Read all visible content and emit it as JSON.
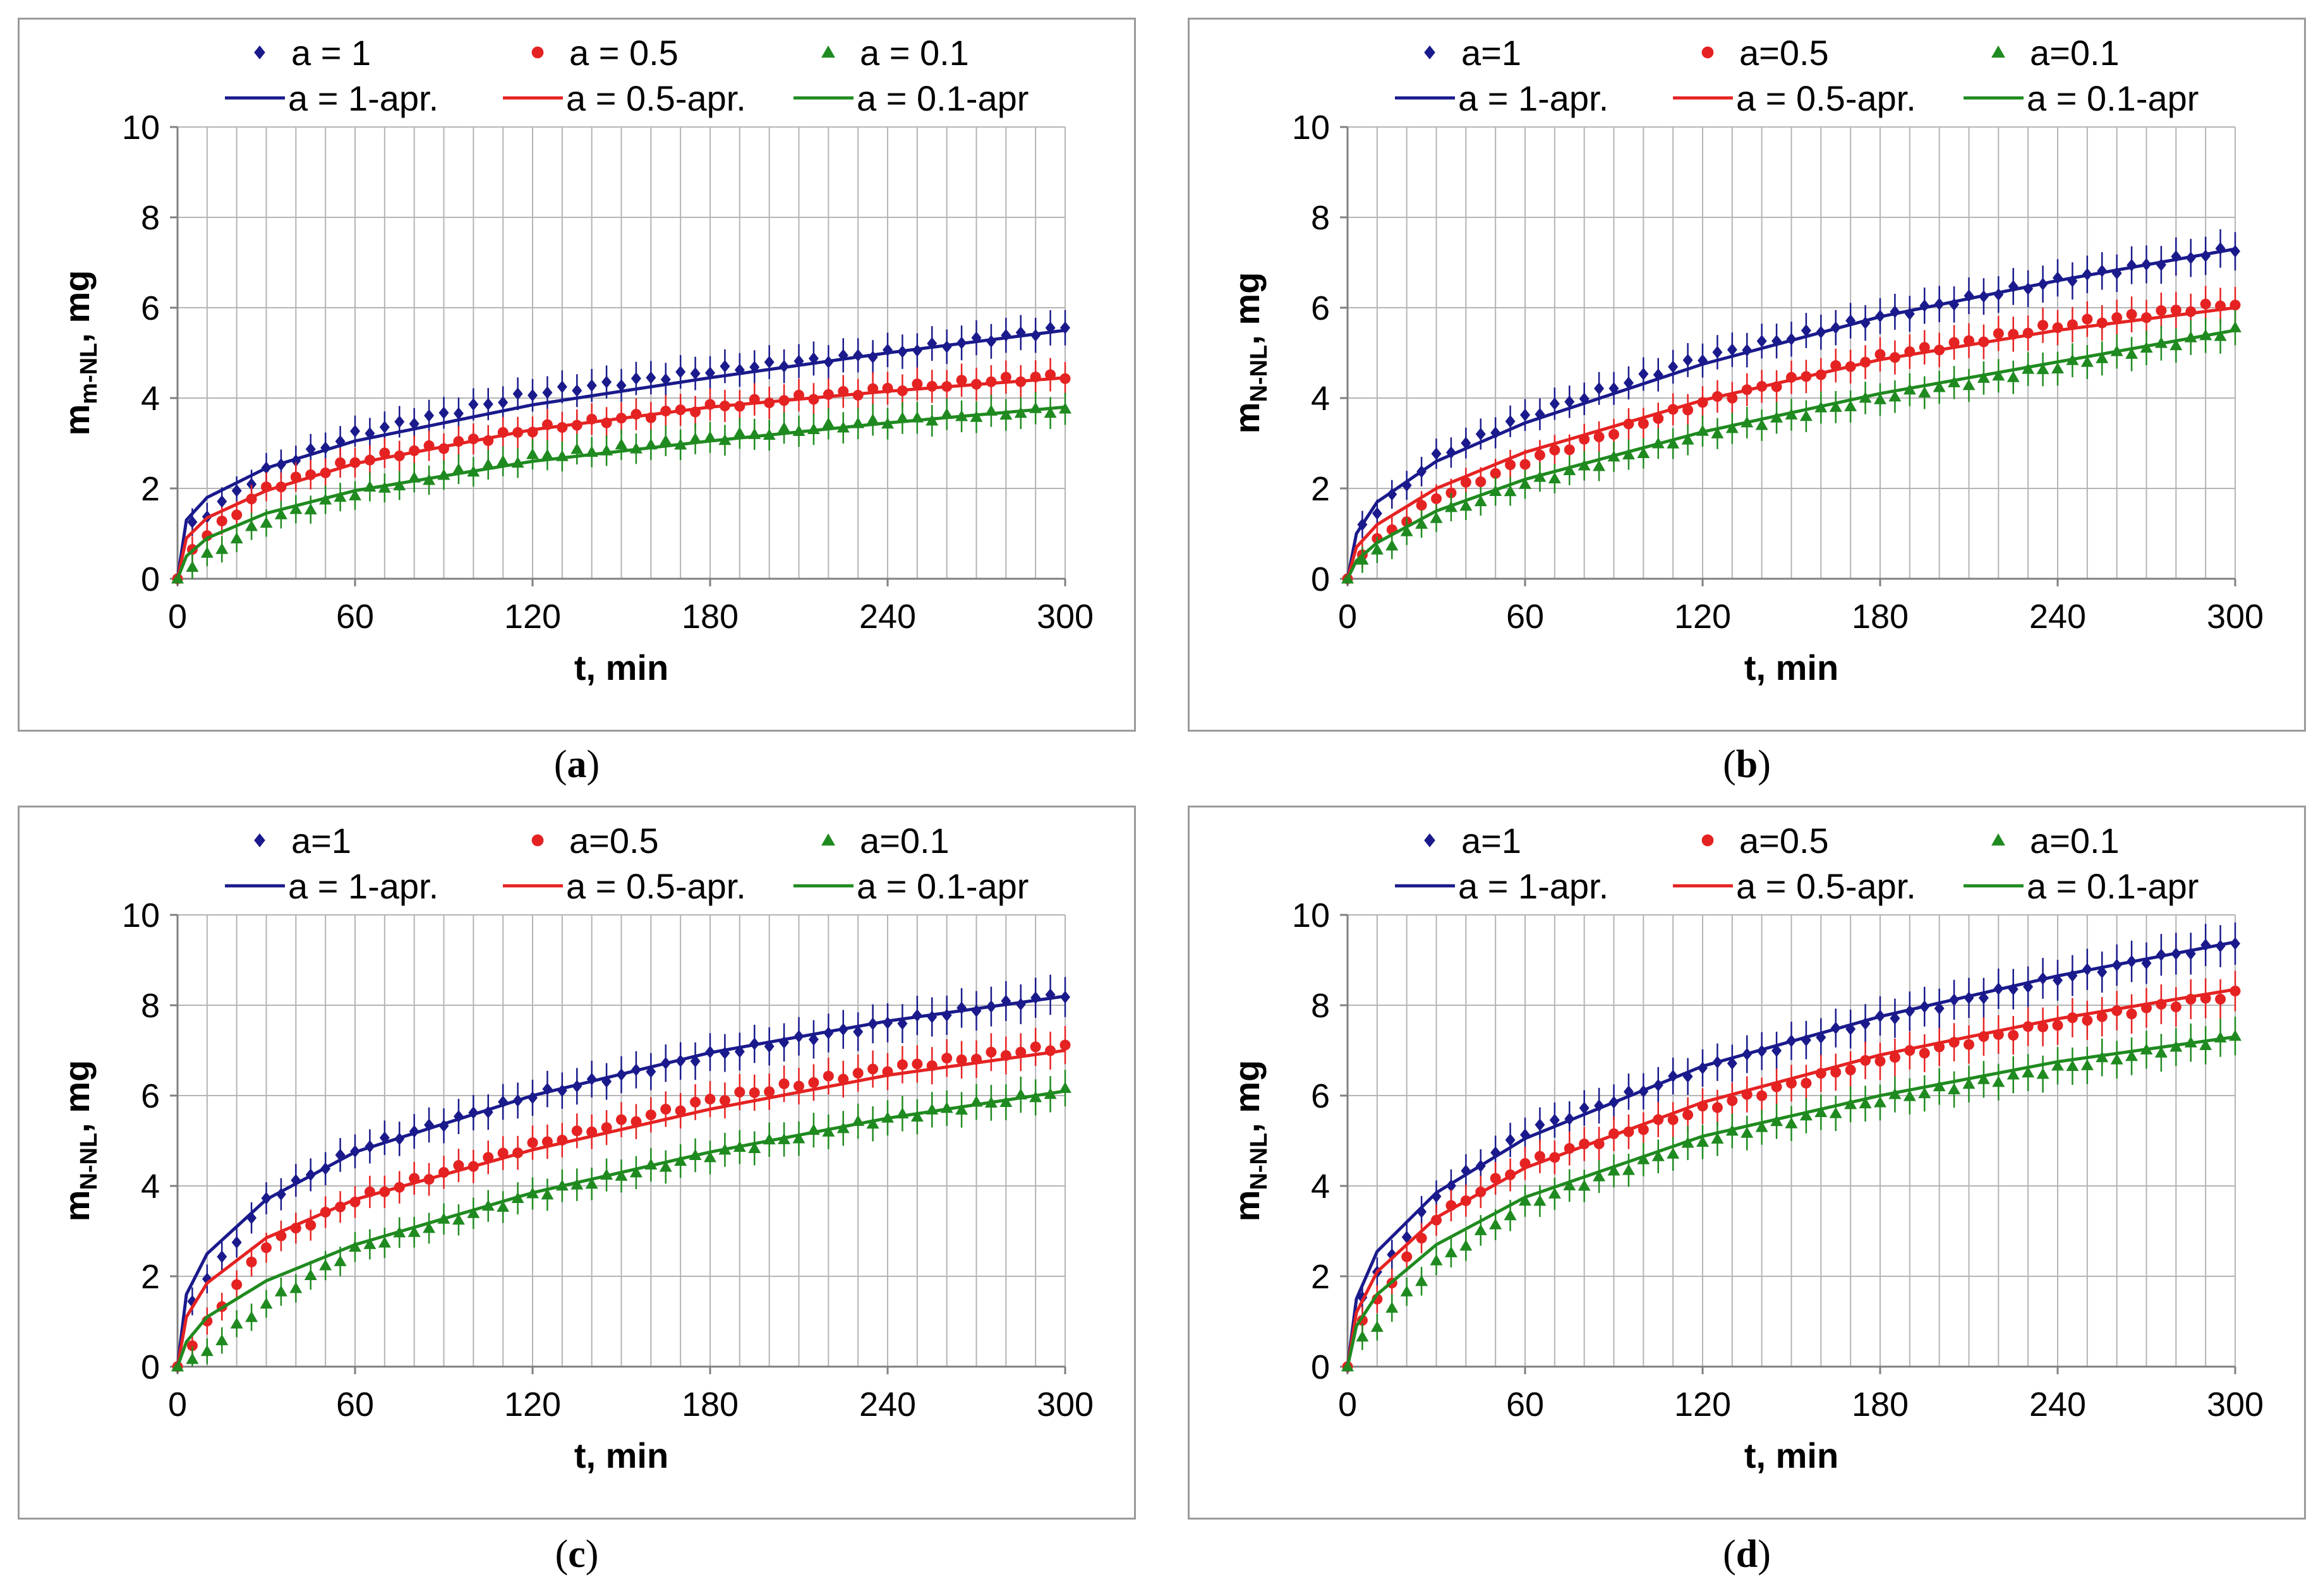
{
  "colors": {
    "blue": "#1a1a8c",
    "red": "#e52222",
    "green": "#1f8a1f",
    "grid": "#b4b4b4",
    "axis": "#808080"
  },
  "chart_data": [
    {
      "panel": "a",
      "type": "scatter",
      "xlabel": "t, min",
      "ylabel_main": "m",
      "ylabel_sub": "m-NL",
      "ylabel_tail": ", mg",
      "xlim": [
        0,
        300
      ],
      "ylim": [
        0,
        10
      ],
      "xticks": [
        0,
        60,
        120,
        180,
        240,
        300
      ],
      "yticks": [
        0,
        2,
        4,
        6,
        8,
        10
      ],
      "legend_markers": [
        "a = 1",
        "a = 0.5",
        "a = 0.1"
      ],
      "legend_lines": [
        "a = 1-apr.",
        "a = 0.5-apr.",
        "a = 0.1-apr"
      ],
      "legend_position": "top",
      "series": [
        {
          "name": "a = 1",
          "color": "blue",
          "marker": "diamond",
          "x": [
            0,
            5,
            30,
            60,
            120,
            180,
            240,
            300
          ],
          "y": [
            0,
            1.2,
            2.4,
            3.2,
            4.1,
            4.6,
            5.0,
            5.55
          ]
        },
        {
          "name": "a = 0.5",
          "color": "red",
          "marker": "circle",
          "x": [
            0,
            5,
            30,
            60,
            120,
            180,
            240,
            300
          ],
          "y": [
            0,
            0.7,
            2.0,
            2.6,
            3.3,
            3.8,
            4.2,
            4.5
          ]
        },
        {
          "name": "a = 0.1",
          "color": "green",
          "marker": "triangle",
          "x": [
            0,
            5,
            30,
            60,
            120,
            180,
            240,
            300
          ],
          "y": [
            0,
            0.3,
            1.3,
            1.9,
            2.7,
            3.1,
            3.5,
            3.75
          ]
        }
      ],
      "fits": [
        {
          "name": "a = 1-apr.",
          "color": "blue",
          "x": [
            0,
            3,
            10,
            30,
            60,
            120,
            180,
            240,
            300
          ],
          "y": [
            0,
            1.3,
            1.8,
            2.45,
            3.05,
            3.85,
            4.45,
            5.0,
            5.5
          ]
        },
        {
          "name": "a = 0.5-apr.",
          "color": "red",
          "x": [
            0,
            3,
            10,
            30,
            60,
            120,
            180,
            240,
            300
          ],
          "y": [
            0,
            0.9,
            1.35,
            1.95,
            2.55,
            3.3,
            3.8,
            4.15,
            4.45
          ]
        },
        {
          "name": "a = 0.1-apr",
          "color": "green",
          "x": [
            0,
            3,
            10,
            30,
            60,
            120,
            180,
            240,
            300
          ],
          "y": [
            0,
            0.5,
            0.9,
            1.45,
            1.95,
            2.6,
            3.05,
            3.45,
            3.8
          ]
        }
      ]
    },
    {
      "panel": "b",
      "type": "scatter",
      "xlabel": "t, min",
      "ylabel_main": "m",
      "ylabel_sub": "N-NL",
      "ylabel_tail": ", mg",
      "xlim": [
        0,
        300
      ],
      "ylim": [
        0,
        10
      ],
      "xticks": [
        0,
        60,
        120,
        180,
        240,
        300
      ],
      "yticks": [
        0,
        2,
        4,
        6,
        8,
        10
      ],
      "legend_markers": [
        "a=1",
        "a=0.5",
        "a=0.1"
      ],
      "legend_lines": [
        "a = 1-apr.",
        "a = 0.5-apr.",
        "a = 0.1-apr"
      ],
      "legend_position": "top",
      "series": [
        {
          "name": "a=1",
          "color": "blue",
          "marker": "diamond",
          "x": [
            0,
            5,
            30,
            60,
            120,
            180,
            240,
            300
          ],
          "y": [
            0,
            1.2,
            2.7,
            3.6,
            4.9,
            5.8,
            6.6,
            7.3
          ]
        },
        {
          "name": "a=0.5",
          "color": "red",
          "marker": "circle",
          "x": [
            0,
            5,
            30,
            60,
            120,
            180,
            240,
            300
          ],
          "y": [
            0,
            0.6,
            1.8,
            2.6,
            3.9,
            4.9,
            5.6,
            6.1
          ]
        },
        {
          "name": "a=0.1",
          "color": "green",
          "marker": "triangle",
          "x": [
            0,
            5,
            30,
            60,
            120,
            180,
            240,
            300
          ],
          "y": [
            0,
            0.4,
            1.4,
            2.1,
            3.2,
            4.0,
            4.7,
            5.5
          ]
        }
      ],
      "fits": [
        {
          "name": "a = 1-apr.",
          "color": "blue",
          "x": [
            0,
            3,
            10,
            30,
            60,
            120,
            180,
            240,
            300
          ],
          "y": [
            0,
            1.0,
            1.7,
            2.6,
            3.45,
            4.75,
            5.8,
            6.6,
            7.3
          ]
        },
        {
          "name": "a = 0.5-apr.",
          "color": "red",
          "x": [
            0,
            3,
            10,
            30,
            60,
            120,
            180,
            240,
            300
          ],
          "y": [
            0,
            0.7,
            1.2,
            2.0,
            2.8,
            3.95,
            4.85,
            5.5,
            6.0
          ]
        },
        {
          "name": "a = 0.1-apr",
          "color": "green",
          "x": [
            0,
            3,
            10,
            30,
            60,
            120,
            180,
            240,
            300
          ],
          "y": [
            0,
            0.4,
            0.8,
            1.5,
            2.2,
            3.25,
            4.1,
            4.8,
            5.5
          ]
        }
      ]
    },
    {
      "panel": "c",
      "type": "scatter",
      "xlabel": "t, min",
      "ylabel_main": "m",
      "ylabel_sub": "N-NL",
      "ylabel_tail": ", mg",
      "xlim": [
        0,
        300
      ],
      "ylim": [
        0,
        10
      ],
      "xticks": [
        0,
        60,
        120,
        180,
        240,
        300
      ],
      "yticks": [
        0,
        2,
        4,
        6,
        8,
        10
      ],
      "legend_markers": [
        "a=1",
        "a=0.5",
        "a=0.1"
      ],
      "legend_lines": [
        "a = 1-apr.",
        "a = 0.5-apr.",
        "a = 0.1-apr"
      ],
      "legend_position": "top",
      "series": [
        {
          "name": "a=1",
          "color": "blue",
          "marker": "diamond",
          "x": [
            0,
            5,
            30,
            60,
            120,
            180,
            240,
            300
          ],
          "y": [
            0,
            1.5,
            3.7,
            4.8,
            6.0,
            6.9,
            7.6,
            8.25
          ]
        },
        {
          "name": "a=0.5",
          "color": "red",
          "marker": "circle",
          "x": [
            0,
            5,
            30,
            60,
            120,
            180,
            240,
            300
          ],
          "y": [
            0,
            0.5,
            2.7,
            3.7,
            4.9,
            5.9,
            6.6,
            7.1
          ]
        },
        {
          "name": "a=0.1",
          "color": "green",
          "marker": "triangle",
          "x": [
            0,
            5,
            30,
            60,
            120,
            180,
            240,
            300
          ],
          "y": [
            0,
            0.1,
            1.4,
            2.6,
            3.8,
            4.7,
            5.5,
            6.1
          ]
        }
      ],
      "fits": [
        {
          "name": "a = 1-apr.",
          "color": "blue",
          "x": [
            0,
            3,
            10,
            30,
            60,
            120,
            180,
            240,
            300
          ],
          "y": [
            0,
            1.6,
            2.5,
            3.7,
            4.75,
            6.0,
            6.95,
            7.65,
            8.2
          ]
        },
        {
          "name": "a = 0.5-apr.",
          "color": "red",
          "x": [
            0,
            3,
            10,
            30,
            60,
            120,
            180,
            240,
            300
          ],
          "y": [
            0,
            1.1,
            1.85,
            2.85,
            3.7,
            4.8,
            5.7,
            6.45,
            7.0
          ]
        },
        {
          "name": "a = 0.1-apr",
          "color": "green",
          "x": [
            0,
            3,
            10,
            30,
            60,
            120,
            180,
            240,
            300
          ],
          "y": [
            0,
            0.55,
            1.1,
            1.9,
            2.7,
            3.85,
            4.75,
            5.5,
            6.1
          ]
        }
      ]
    },
    {
      "panel": "d",
      "type": "scatter",
      "xlabel": "t, min",
      "ylabel_main": "m",
      "ylabel_sub": "N-NL",
      "ylabel_tail": ", mg",
      "xlim": [
        0,
        300
      ],
      "ylim": [
        0,
        10
      ],
      "xticks": [
        0,
        60,
        120,
        180,
        240,
        300
      ],
      "yticks": [
        0,
        2,
        4,
        6,
        8,
        10
      ],
      "legend_markers": [
        "a=1",
        "a=0.5",
        "a=0.1"
      ],
      "legend_lines": [
        "a = 1-apr.",
        "a = 0.5-apr.",
        "a = 0.1-apr"
      ],
      "legend_position": "top",
      "series": [
        {
          "name": "a=1",
          "color": "blue",
          "marker": "diamond",
          "x": [
            0,
            5,
            30,
            60,
            120,
            180,
            240,
            300
          ],
          "y": [
            0,
            1.6,
            3.8,
            5.2,
            6.6,
            7.7,
            8.6,
            9.4
          ]
        },
        {
          "name": "a=0.5",
          "color": "red",
          "marker": "circle",
          "x": [
            0,
            5,
            30,
            60,
            120,
            180,
            240,
            300
          ],
          "y": [
            0,
            1.0,
            3.3,
            4.5,
            5.7,
            6.8,
            7.6,
            8.25
          ]
        },
        {
          "name": "a=0.1",
          "color": "green",
          "marker": "triangle",
          "x": [
            0,
            5,
            30,
            60,
            120,
            180,
            240,
            300
          ],
          "y": [
            0,
            0.6,
            2.3,
            3.6,
            5.0,
            5.9,
            6.6,
            7.3
          ]
        }
      ],
      "fits": [
        {
          "name": "a = 1-apr.",
          "color": "blue",
          "x": [
            0,
            3,
            10,
            30,
            60,
            120,
            180,
            240,
            300
          ],
          "y": [
            0,
            1.5,
            2.55,
            3.85,
            5.05,
            6.65,
            7.75,
            8.65,
            9.4
          ]
        },
        {
          "name": "a = 0.5-apr.",
          "color": "red",
          "x": [
            0,
            3,
            10,
            30,
            60,
            120,
            180,
            240,
            300
          ],
          "y": [
            0,
            1.2,
            2.1,
            3.3,
            4.4,
            5.85,
            6.9,
            7.7,
            8.35
          ]
        },
        {
          "name": "a = 0.1-apr",
          "color": "green",
          "x": [
            0,
            3,
            10,
            30,
            60,
            120,
            180,
            240,
            300
          ],
          "y": [
            0,
            0.9,
            1.6,
            2.7,
            3.75,
            5.1,
            6.0,
            6.75,
            7.3
          ]
        }
      ]
    }
  ],
  "captions": [
    "a",
    "b",
    "c",
    "d"
  ]
}
